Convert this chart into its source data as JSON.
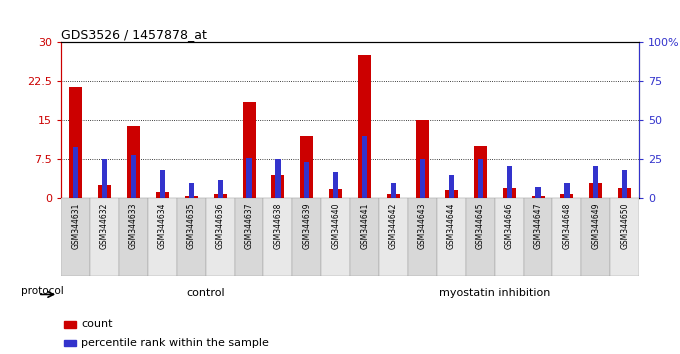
{
  "title": "GDS3526 / 1457878_at",
  "samples": [
    "GSM344631",
    "GSM344632",
    "GSM344633",
    "GSM344634",
    "GSM344635",
    "GSM344636",
    "GSM344637",
    "GSM344638",
    "GSM344639",
    "GSM344640",
    "GSM344641",
    "GSM344642",
    "GSM344643",
    "GSM344644",
    "GSM344645",
    "GSM344646",
    "GSM344647",
    "GSM344648",
    "GSM344649",
    "GSM344650"
  ],
  "count": [
    21.5,
    2.5,
    14.0,
    1.2,
    0.5,
    0.8,
    18.5,
    4.5,
    12.0,
    1.8,
    27.5,
    0.8,
    15.0,
    1.5,
    10.0,
    2.0,
    0.5,
    0.8,
    3.0,
    2.0
  ],
  "percentile": [
    33.0,
    25.0,
    28.0,
    18.0,
    10.0,
    12.0,
    26.0,
    25.0,
    23.0,
    17.0,
    40.0,
    10.0,
    25.0,
    15.0,
    25.0,
    21.0,
    7.0,
    10.0,
    21.0,
    18.0
  ],
  "control_count": 10,
  "ylim_left": [
    0,
    30
  ],
  "ylim_right": [
    0,
    100
  ],
  "yticks_left": [
    0,
    7.5,
    15,
    22.5,
    30
  ],
  "yticks_right": [
    0,
    25,
    50,
    75,
    100
  ],
  "ytick_labels_left": [
    "0",
    "7.5",
    "15",
    "22.5",
    "30"
  ],
  "ytick_labels_right": [
    "0",
    "25",
    "50",
    "75",
    "100%"
  ],
  "bar_color_red": "#cc0000",
  "bar_color_blue": "#3333cc",
  "control_label": "control",
  "treatment_label": "myostatin inhibition",
  "protocol_label": "protocol",
  "legend_count": "count",
  "legend_percentile": "percentile rank within the sample",
  "control_bg": "#ccffcc",
  "treatment_bg": "#55cc55",
  "title_fontsize": 9,
  "bg_color": "#ffffff",
  "plot_bg": "#ffffff",
  "sample_bg_even": "#d8d8d8",
  "sample_bg_odd": "#e8e8e8"
}
